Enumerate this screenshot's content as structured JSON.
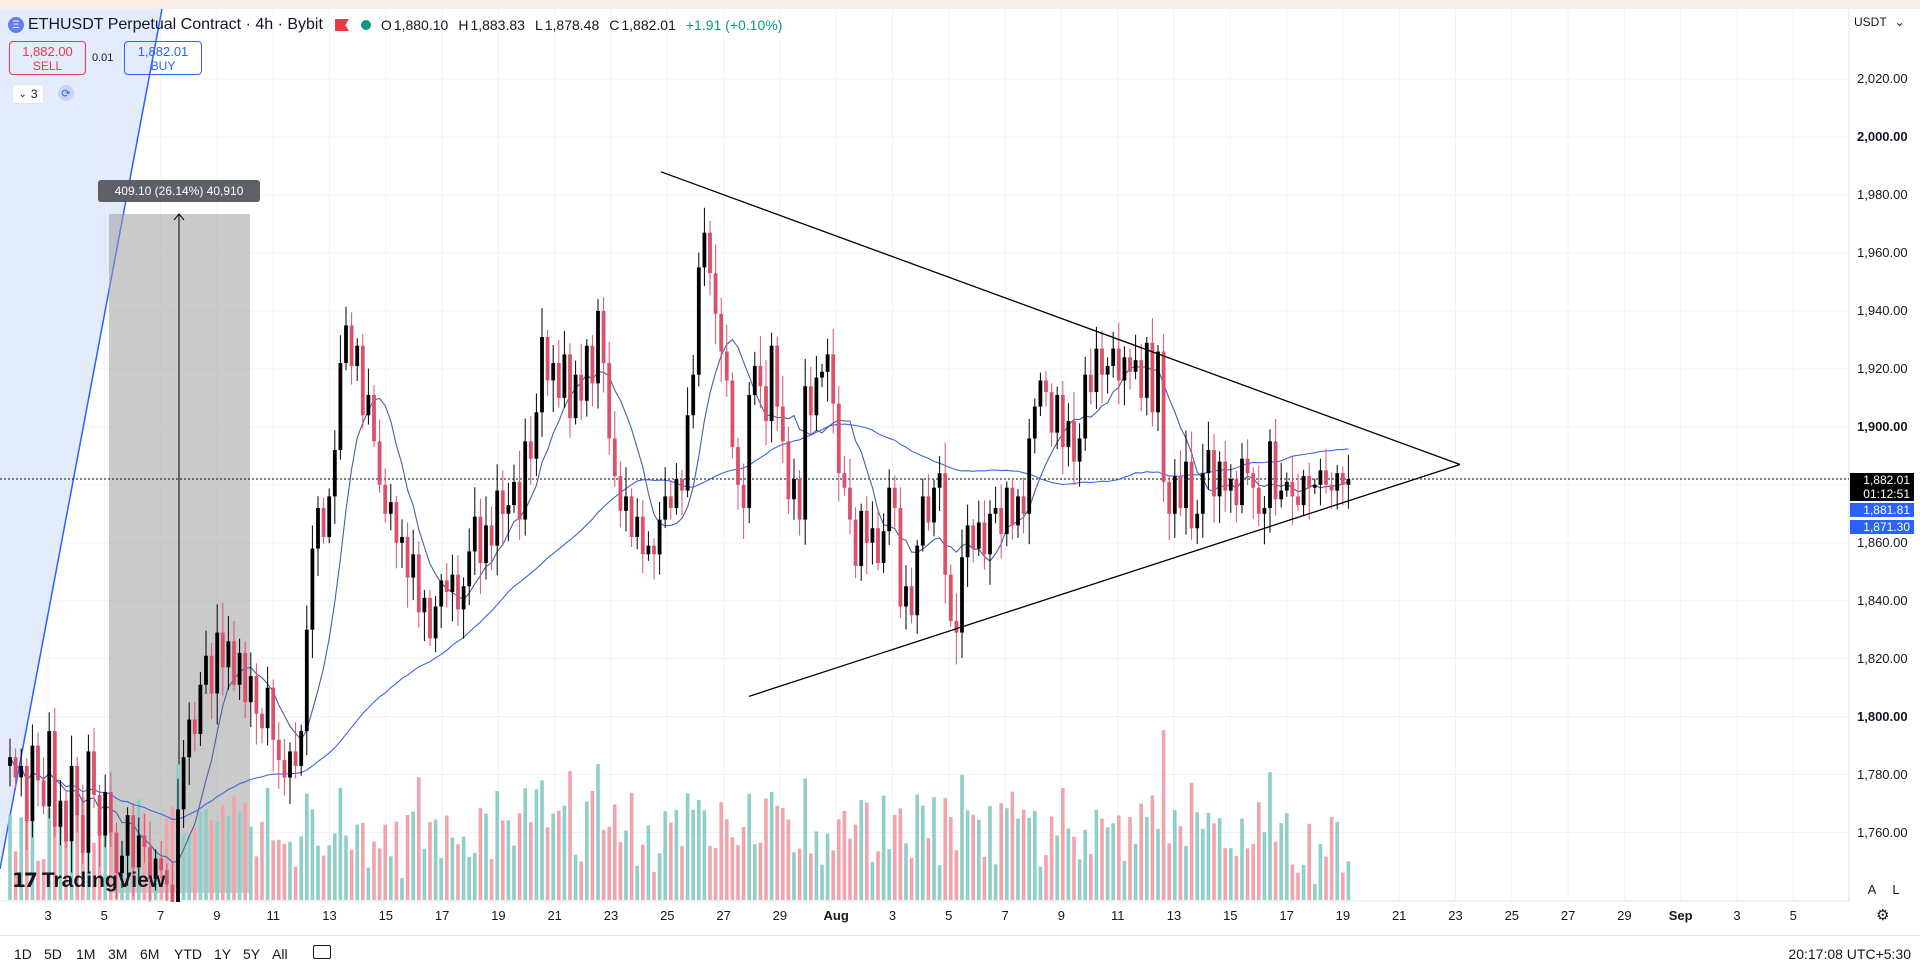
{
  "header": {
    "symbol_title": "ETHUSDT Perpetual Contract · 4h · Bybit",
    "eth_icon": "ethereum-icon",
    "ohlc": {
      "o_label": "O",
      "o": "1,880.10",
      "h_label": "H",
      "h": "1,883.83",
      "l_label": "L",
      "l": "1,878.48",
      "c_label": "C",
      "c": "1,882.01",
      "change": "+1.91 (+0.10%)"
    },
    "change_color": "#089981"
  },
  "trade": {
    "sell_price": "1,882.00",
    "sell_label": "SELL",
    "quantity": "0.01",
    "buy_price": "1,882.01",
    "buy_label": "BUY"
  },
  "indicators_toggle": {
    "count": "3",
    "icon": "chevron-down-icon"
  },
  "measure_label": "409.10 (26.14%) 40,910",
  "currency": "USDT",
  "price_axis": {
    "ticks": [
      "2,020.00",
      "2,000.00",
      "1,980.00",
      "1,960.00",
      "1,940.00",
      "1,920.00",
      "1,900.00",
      "1,860.00",
      "1,840.00",
      "1,820.00",
      "1,800.00",
      "1,780.00",
      "1,760.00"
    ],
    "bold_ticks": [
      "2,000.00",
      "1,900.00",
      "1,800.00"
    ],
    "current_price": "1,882.01",
    "countdown": "01:12:51",
    "ma_fast_value": "1,881.81",
    "ma_slow_value": "1,871.30"
  },
  "time_axis": [
    "3",
    "5",
    "7",
    "9",
    "11",
    "13",
    "15",
    "17",
    "19",
    "21",
    "23",
    "25",
    "27",
    "29",
    "Aug",
    "3",
    "5",
    "7",
    "9",
    "11",
    "13",
    "15",
    "17",
    "19",
    "21",
    "23",
    "25",
    "27",
    "29",
    "Sep",
    "3",
    "5"
  ],
  "branding": {
    "logo_text": "TradingView"
  },
  "scale_buttons": {
    "auto": "A",
    "log": "L"
  },
  "bottom_bar": {
    "ranges": [
      "1D",
      "5D",
      "1M",
      "3M",
      "6M",
      "YTD",
      "1Y",
      "5Y",
      "All"
    ],
    "clock": "20:17:08 UTC+5:30"
  },
  "colors": {
    "up": "#000000",
    "down": "#d9526c",
    "ma_fast": "#4a5ea8",
    "ma_slow": "#2962ff",
    "vol_up": "#8fcfc7",
    "vol_down": "#f2a4ad",
    "current_price_tag": "#000000",
    "ma_tag": "#2962ff"
  },
  "chart_data": {
    "type": "candlestick",
    "symbol": "ETHUSDT",
    "interval": "4h",
    "ylim": [
      1740,
      2030
    ],
    "x_ticks": [
      "3",
      "5",
      "7",
      "9",
      "11",
      "13",
      "15",
      "17",
      "19",
      "21",
      "23",
      "25",
      "27",
      "29",
      "Aug",
      "3",
      "5",
      "7",
      "9",
      "11",
      "13",
      "15",
      "17",
      "19",
      "21",
      "23",
      "25",
      "27",
      "29",
      "Sep",
      "3",
      "5"
    ],
    "closes": [
      1786,
      1779,
      1783,
      1764,
      1790,
      1778,
      1769,
      1795,
      1762,
      1771,
      1757,
      1783,
      1766,
      1753,
      1788,
      1773,
      1759,
      1774,
      1760,
      1746,
      1752,
      1766,
      1748,
      1759,
      1755,
      1744,
      1751,
      1747,
      1742,
      1736,
      1768,
      1786,
      1799,
      1794,
      1811,
      1821,
      1808,
      1829,
      1817,
      1826,
      1811,
      1822,
      1805,
      1814,
      1801,
      1796,
      1810,
      1792,
      1785,
      1779,
      1788,
      1783,
      1795,
      1830,
      1858,
      1872,
      1862,
      1876,
      1892,
      1922,
      1935,
      1921,
      1928,
      1904,
      1911,
      1895,
      1880,
      1870,
      1874,
      1860,
      1862,
      1848,
      1856,
      1836,
      1841,
      1827,
      1838,
      1847,
      1843,
      1849,
      1837,
      1845,
      1857,
      1869,
      1853,
      1866,
      1859,
      1878,
      1870,
      1873,
      1881,
      1868,
      1895,
      1889,
      1905,
      1931,
      1916,
      1922,
      1910,
      1925,
      1903,
      1918,
      1909,
      1928,
      1915,
      1940,
      1922,
      1896,
      1883,
      1871,
      1876,
      1862,
      1869,
      1856,
      1859,
      1856,
      1868,
      1876,
      1872,
      1882,
      1878,
      1904,
      1918,
      1955,
      1967,
      1953,
      1939,
      1926,
      1916,
      1893,
      1880,
      1872,
      1911,
      1921,
      1914,
      1902,
      1928,
      1907,
      1895,
      1875,
      1882,
      1868,
      1914,
      1904,
      1917,
      1919,
      1925,
      1908,
      1884,
      1879,
      1868,
      1852,
      1871,
      1860,
      1865,
      1853,
      1864,
      1879,
      1872,
      1838,
      1845,
      1835,
      1859,
      1876,
      1867,
      1879,
      1884,
      1849,
      1833,
      1829,
      1855,
      1866,
      1858,
      1867,
      1856,
      1870,
      1872,
      1863,
      1879,
      1866,
      1876,
      1870,
      1896,
      1907,
      1916,
      1912,
      1898,
      1911,
      1893,
      1902,
      1888,
      1896,
      1918,
      1912,
      1927,
      1918,
      1921,
      1927,
      1916,
      1924,
      1919,
      1923,
      1910,
      1929,
      1905,
      1926,
      1881,
      1870,
      1883,
      1872,
      1888,
      1865,
      1870,
      1884,
      1892,
      1876,
      1888,
      1878,
      1882,
      1873,
      1889,
      1884,
      1879,
      1870,
      1872,
      1895,
      1875,
      1878,
      1881,
      1876,
      1873,
      1883,
      1879,
      1880,
      1885,
      1880,
      1878,
      1884,
      1880,
      1882
    ],
    "series": [
      {
        "name": "MA fast",
        "last": 1881.81
      },
      {
        "name": "MA slow",
        "last": 1871.3
      }
    ],
    "annotations": {
      "triangle_upper_start": {
        "x": "Jul 25",
        "y": 1988
      },
      "triangle_apex": {
        "x": "Aug 22",
        "y": 1887
      },
      "triangle_lower_start": {
        "x": "Jul 28",
        "y": 1807
      },
      "measure_range": {
        "from": 1565.0,
        "to": 1974.1,
        "text": "409.10 (26.14%) 40,910"
      }
    }
  }
}
